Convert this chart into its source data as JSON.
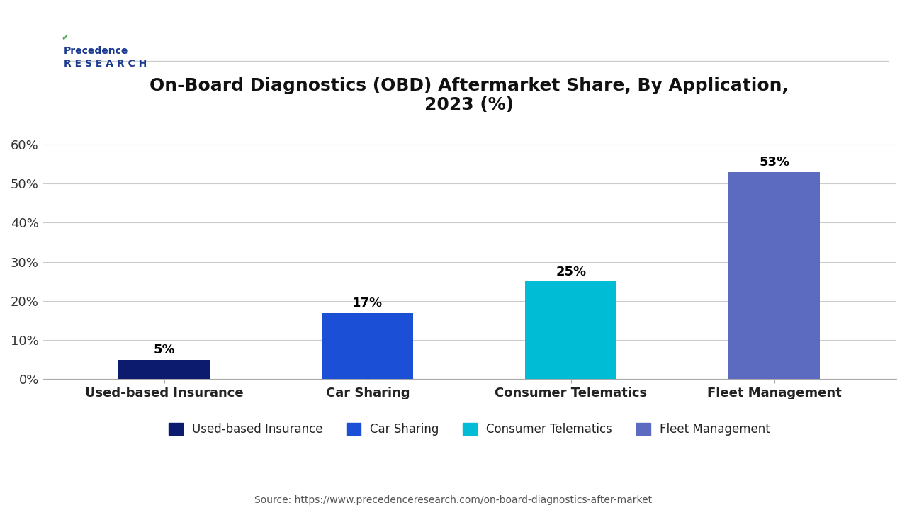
{
  "title": "On-Board Diagnostics (OBD) Aftermarket Share, By Application,\n2023 (%)",
  "categories": [
    "Used-based Insurance",
    "Car Sharing",
    "Consumer Telematics",
    "Fleet Management"
  ],
  "values": [
    5,
    17,
    25,
    53
  ],
  "labels": [
    "5%",
    "17%",
    "25%",
    "53%"
  ],
  "bar_colors": [
    "#0d1b6e",
    "#1a4fd6",
    "#00bcd4",
    "#5c6bc0"
  ],
  "legend_labels": [
    "Used-based Insurance",
    "Car Sharing",
    "Consumer Telematics",
    "Fleet Management"
  ],
  "ylim": [
    0,
    65
  ],
  "yticks": [
    0,
    10,
    20,
    30,
    40,
    50,
    60
  ],
  "ytick_labels": [
    "0%",
    "10%",
    "20%",
    "30%",
    "40%",
    "50%",
    "60%"
  ],
  "source_text": "Source: https://www.precedenceresearch.com/on-board-diagnostics-after-market",
  "background_color": "#ffffff",
  "plot_bg_color": "#ffffff",
  "grid_color": "#cccccc",
  "title_fontsize": 18,
  "tick_fontsize": 13,
  "label_fontsize": 13,
  "bar_label_fontsize": 13,
  "legend_fontsize": 12,
  "source_fontsize": 10
}
